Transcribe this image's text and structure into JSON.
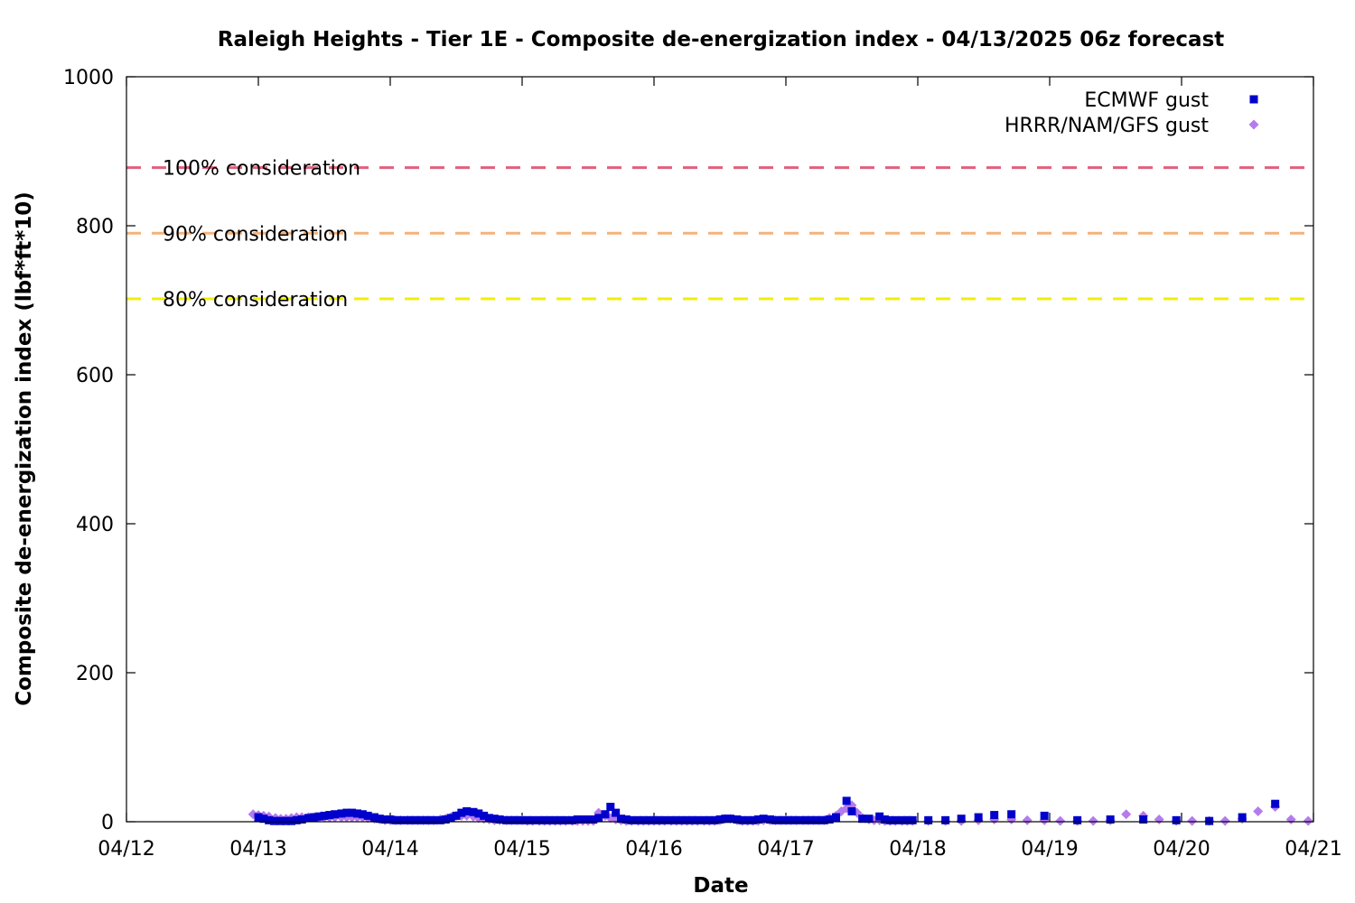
{
  "chart_data": {
    "type": "scatter",
    "title": "Raleigh Heights - Tier 1E - Composite de-energization index - 04/13/2025 06z forecast",
    "xlabel": "Date",
    "ylabel": "Composite de-energization index (lbf*ft*10)",
    "ylim": [
      0,
      1000
    ],
    "xlim_days": [
      0,
      9
    ],
    "x_ticks": [
      {
        "d": 0,
        "label": "04/12"
      },
      {
        "d": 1,
        "label": "04/13"
      },
      {
        "d": 2,
        "label": "04/14"
      },
      {
        "d": 3,
        "label": "04/15"
      },
      {
        "d": 4,
        "label": "04/16"
      },
      {
        "d": 5,
        "label": "04/17"
      },
      {
        "d": 6,
        "label": "04/18"
      },
      {
        "d": 7,
        "label": "04/19"
      },
      {
        "d": 8,
        "label": "04/20"
      },
      {
        "d": 9,
        "label": "04/21"
      }
    ],
    "y_ticks": [
      {
        "v": 0,
        "label": "0"
      },
      {
        "v": 200,
        "label": "200"
      },
      {
        "v": 400,
        "label": "400"
      },
      {
        "v": 600,
        "label": "600"
      },
      {
        "v": 800,
        "label": "800"
      },
      {
        "v": 1000,
        "label": "1000"
      }
    ],
    "thresholds": [
      {
        "label": "100% consideration",
        "value": 878,
        "color": "#e0607e"
      },
      {
        "label": "90% consideration",
        "value": 790,
        "color": "#f5b27a"
      },
      {
        "label": "80% consideration",
        "value": 702,
        "color": "#f0f000"
      }
    ],
    "legend_position": "top-right",
    "series": [
      {
        "name": "ECMWF gust",
        "marker": "square",
        "color": "#0000cc",
        "points": [
          [
            1.0,
            6
          ],
          [
            1.04,
            4
          ],
          [
            1.08,
            2
          ],
          [
            1.12,
            1
          ],
          [
            1.17,
            1
          ],
          [
            1.21,
            1
          ],
          [
            1.25,
            1
          ],
          [
            1.29,
            2
          ],
          [
            1.33,
            3
          ],
          [
            1.38,
            5
          ],
          [
            1.42,
            6
          ],
          [
            1.46,
            7
          ],
          [
            1.5,
            8
          ],
          [
            1.54,
            9
          ],
          [
            1.58,
            10
          ],
          [
            1.63,
            11
          ],
          [
            1.67,
            12
          ],
          [
            1.71,
            12
          ],
          [
            1.75,
            11
          ],
          [
            1.79,
            10
          ],
          [
            1.83,
            8
          ],
          [
            1.88,
            6
          ],
          [
            1.92,
            4
          ],
          [
            1.96,
            3
          ],
          [
            2.0,
            3
          ],
          [
            2.04,
            2
          ],
          [
            2.08,
            2
          ],
          [
            2.13,
            2
          ],
          [
            2.17,
            2
          ],
          [
            2.21,
            2
          ],
          [
            2.25,
            2
          ],
          [
            2.29,
            2
          ],
          [
            2.33,
            2
          ],
          [
            2.38,
            2
          ],
          [
            2.42,
            3
          ],
          [
            2.46,
            5
          ],
          [
            2.5,
            8
          ],
          [
            2.54,
            12
          ],
          [
            2.58,
            14
          ],
          [
            2.63,
            13
          ],
          [
            2.67,
            11
          ],
          [
            2.71,
            8
          ],
          [
            2.75,
            5
          ],
          [
            2.79,
            4
          ],
          [
            2.83,
            3
          ],
          [
            2.88,
            2
          ],
          [
            2.92,
            2
          ],
          [
            2.96,
            2
          ],
          [
            3.0,
            2
          ],
          [
            3.04,
            2
          ],
          [
            3.08,
            2
          ],
          [
            3.13,
            2
          ],
          [
            3.17,
            2
          ],
          [
            3.21,
            2
          ],
          [
            3.25,
            2
          ],
          [
            3.29,
            2
          ],
          [
            3.33,
            2
          ],
          [
            3.38,
            2
          ],
          [
            3.42,
            3
          ],
          [
            3.46,
            3
          ],
          [
            3.5,
            3
          ],
          [
            3.54,
            3
          ],
          [
            3.58,
            5
          ],
          [
            3.63,
            10
          ],
          [
            3.67,
            20
          ],
          [
            3.71,
            12
          ],
          [
            3.75,
            4
          ],
          [
            3.79,
            3
          ],
          [
            3.83,
            2
          ],
          [
            3.88,
            2
          ],
          [
            3.92,
            2
          ],
          [
            3.96,
            2
          ],
          [
            4.0,
            2
          ],
          [
            4.04,
            2
          ],
          [
            4.08,
            2
          ],
          [
            4.13,
            2
          ],
          [
            4.17,
            2
          ],
          [
            4.21,
            2
          ],
          [
            4.25,
            2
          ],
          [
            4.29,
            2
          ],
          [
            4.33,
            2
          ],
          [
            4.38,
            2
          ],
          [
            4.42,
            2
          ],
          [
            4.46,
            2
          ],
          [
            4.5,
            3
          ],
          [
            4.54,
            4
          ],
          [
            4.58,
            4
          ],
          [
            4.63,
            3
          ],
          [
            4.67,
            2
          ],
          [
            4.71,
            2
          ],
          [
            4.75,
            2
          ],
          [
            4.79,
            3
          ],
          [
            4.83,
            4
          ],
          [
            4.88,
            3
          ],
          [
            4.92,
            2
          ],
          [
            4.96,
            2
          ],
          [
            5.0,
            2
          ],
          [
            5.04,
            2
          ],
          [
            5.08,
            2
          ],
          [
            5.13,
            2
          ],
          [
            5.17,
            2
          ],
          [
            5.21,
            2
          ],
          [
            5.25,
            2
          ],
          [
            5.29,
            2
          ],
          [
            5.33,
            3
          ],
          [
            5.38,
            6
          ],
          [
            5.46,
            28
          ],
          [
            5.5,
            14
          ],
          [
            5.58,
            4
          ],
          [
            5.63,
            4
          ],
          [
            5.71,
            7
          ],
          [
            5.75,
            3
          ],
          [
            5.79,
            2
          ],
          [
            5.83,
            2
          ],
          [
            5.88,
            2
          ],
          [
            5.92,
            2
          ],
          [
            5.96,
            2
          ],
          [
            6.08,
            2
          ],
          [
            6.21,
            2
          ],
          [
            6.33,
            4
          ],
          [
            6.46,
            6
          ],
          [
            6.58,
            9
          ],
          [
            6.71,
            10
          ],
          [
            6.96,
            8
          ],
          [
            7.21,
            2
          ],
          [
            7.46,
            3
          ],
          [
            7.71,
            3
          ],
          [
            7.96,
            2
          ],
          [
            8.21,
            1
          ],
          [
            8.46,
            6
          ],
          [
            8.71,
            24
          ]
        ]
      },
      {
        "name": "HRRR/NAM/GFS gust",
        "marker": "diamond",
        "color": "#b57bec",
        "points": [
          [
            0.96,
            10
          ],
          [
            1.0,
            9
          ],
          [
            1.04,
            8
          ],
          [
            1.08,
            7
          ],
          [
            1.13,
            5
          ],
          [
            1.17,
            4
          ],
          [
            1.21,
            4
          ],
          [
            1.25,
            5
          ],
          [
            1.29,
            6
          ],
          [
            1.33,
            6
          ],
          [
            1.38,
            6
          ],
          [
            1.42,
            6
          ],
          [
            1.46,
            6
          ],
          [
            1.5,
            6
          ],
          [
            1.54,
            6
          ],
          [
            1.58,
            6
          ],
          [
            1.63,
            6
          ],
          [
            1.67,
            6
          ],
          [
            1.71,
            6
          ],
          [
            1.75,
            6
          ],
          [
            1.79,
            6
          ],
          [
            1.83,
            5
          ],
          [
            1.88,
            4
          ],
          [
            1.92,
            3
          ],
          [
            1.96,
            2
          ],
          [
            2.0,
            2
          ],
          [
            2.04,
            2
          ],
          [
            2.08,
            2
          ],
          [
            2.13,
            2
          ],
          [
            2.17,
            2
          ],
          [
            2.21,
            2
          ],
          [
            2.25,
            2
          ],
          [
            2.29,
            2
          ],
          [
            2.33,
            2
          ],
          [
            2.38,
            3
          ],
          [
            2.42,
            4
          ],
          [
            2.46,
            6
          ],
          [
            2.5,
            8
          ],
          [
            2.54,
            8
          ],
          [
            2.58,
            8
          ],
          [
            2.63,
            7
          ],
          [
            2.67,
            5
          ],
          [
            2.71,
            4
          ],
          [
            2.75,
            3
          ],
          [
            2.79,
            2
          ],
          [
            2.83,
            2
          ],
          [
            2.88,
            2
          ],
          [
            2.92,
            2
          ],
          [
            2.96,
            2
          ],
          [
            3.0,
            2
          ],
          [
            3.04,
            1
          ],
          [
            3.08,
            1
          ],
          [
            3.13,
            1
          ],
          [
            3.17,
            1
          ],
          [
            3.21,
            1
          ],
          [
            3.25,
            1
          ],
          [
            3.29,
            1
          ],
          [
            3.33,
            1
          ],
          [
            3.38,
            1
          ],
          [
            3.42,
            1
          ],
          [
            3.46,
            1
          ],
          [
            3.5,
            1
          ],
          [
            3.54,
            1
          ],
          [
            3.58,
            12
          ],
          [
            3.63,
            8
          ],
          [
            3.67,
            5
          ],
          [
            3.71,
            3
          ],
          [
            3.75,
            2
          ],
          [
            3.79,
            1
          ],
          [
            3.83,
            1
          ],
          [
            3.88,
            1
          ],
          [
            3.92,
            1
          ],
          [
            3.96,
            1
          ],
          [
            4.0,
            1
          ],
          [
            4.04,
            1
          ],
          [
            4.08,
            1
          ],
          [
            4.13,
            1
          ],
          [
            4.17,
            1
          ],
          [
            4.21,
            1
          ],
          [
            4.25,
            1
          ],
          [
            4.29,
            1
          ],
          [
            4.33,
            1
          ],
          [
            4.38,
            1
          ],
          [
            4.42,
            1
          ],
          [
            4.46,
            1
          ],
          [
            4.5,
            2
          ],
          [
            4.54,
            4
          ],
          [
            4.58,
            4
          ],
          [
            4.63,
            2
          ],
          [
            4.67,
            1
          ],
          [
            4.71,
            1
          ],
          [
            4.75,
            1
          ],
          [
            4.79,
            1
          ],
          [
            4.83,
            2
          ],
          [
            4.88,
            2
          ],
          [
            4.92,
            2
          ],
          [
            4.96,
            2
          ],
          [
            5.0,
            2
          ],
          [
            5.04,
            2
          ],
          [
            5.08,
            2
          ],
          [
            5.13,
            2
          ],
          [
            5.17,
            2
          ],
          [
            5.21,
            2
          ],
          [
            5.25,
            2
          ],
          [
            5.29,
            2
          ],
          [
            5.33,
            5
          ],
          [
            5.38,
            8
          ],
          [
            5.42,
            14
          ],
          [
            5.46,
            18
          ],
          [
            5.5,
            22
          ],
          [
            5.54,
            12
          ],
          [
            5.58,
            5
          ],
          [
            5.63,
            3
          ],
          [
            5.67,
            2
          ],
          [
            5.71,
            2
          ],
          [
            5.75,
            1
          ],
          [
            5.79,
            1
          ],
          [
            5.83,
            1
          ],
          [
            5.88,
            1
          ],
          [
            5.92,
            1
          ],
          [
            5.96,
            1
          ],
          [
            6.08,
            1
          ],
          [
            6.21,
            1
          ],
          [
            6.33,
            1
          ],
          [
            6.46,
            2
          ],
          [
            6.58,
            3
          ],
          [
            6.71,
            3
          ],
          [
            6.83,
            2
          ],
          [
            6.96,
            2
          ],
          [
            7.08,
            1
          ],
          [
            7.21,
            1
          ],
          [
            7.33,
            1
          ],
          [
            7.46,
            2
          ],
          [
            7.58,
            10
          ],
          [
            7.71,
            8
          ],
          [
            7.83,
            3
          ],
          [
            7.96,
            1
          ],
          [
            8.08,
            1
          ],
          [
            8.21,
            1
          ],
          [
            8.33,
            1
          ],
          [
            8.46,
            4
          ],
          [
            8.58,
            14
          ],
          [
            8.71,
            20
          ],
          [
            8.83,
            3
          ],
          [
            8.96,
            1
          ]
        ]
      }
    ]
  }
}
